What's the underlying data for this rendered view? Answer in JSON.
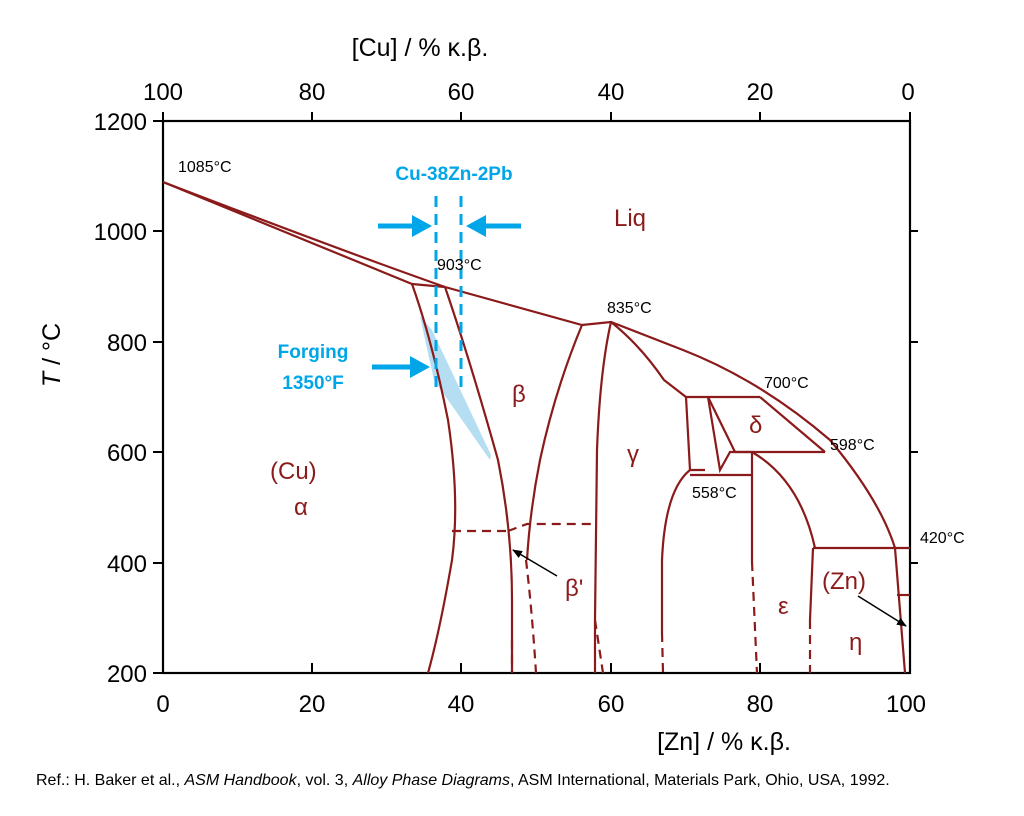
{
  "axes": {
    "top_label": "[Cu] / % κ.β.",
    "bottom_label": "[Zn] / % κ.β.",
    "y_label_italic": "T",
    "y_label_rest": " / °C",
    "top_ticks": [
      "100",
      "80",
      "60",
      "40",
      "20",
      "0"
    ],
    "bottom_ticks": [
      "0",
      "20",
      "40",
      "60",
      "80",
      "100"
    ],
    "y_ticks": [
      "200",
      "400",
      "600",
      "800",
      "1000",
      "1200"
    ]
  },
  "temperatures": {
    "t1085": "1085°C",
    "t903": "903°C",
    "t835": "835°C",
    "t700": "700°C",
    "t598": "598°C",
    "t558": "558°C",
    "t420": "420°C"
  },
  "phases": {
    "liq": "Liq",
    "cu": "(Cu)",
    "alpha": "α",
    "beta": "β",
    "beta_prime": "β'",
    "gamma": "γ",
    "delta": "δ",
    "epsilon": "ε",
    "zn": "(Zn)",
    "eta": "η"
  },
  "annotations": {
    "alloy": "Cu-38Zn-2Pb",
    "forging_1": "Forging",
    "forging_2": "1350°F"
  },
  "reference": {
    "part1": "Ref.: H. Baker et al., ",
    "part2": "ASM Handbook",
    "part3": ", vol. 3, ",
    "part4": "Alloy Phase Diagrams",
    "part5": ", ASM International, Materials Park, Ohio, USA, 1992."
  },
  "colors": {
    "phase_line": "#8b1a1a",
    "highlight": "#00a6e8",
    "forging_window": "#a8d8f0"
  }
}
